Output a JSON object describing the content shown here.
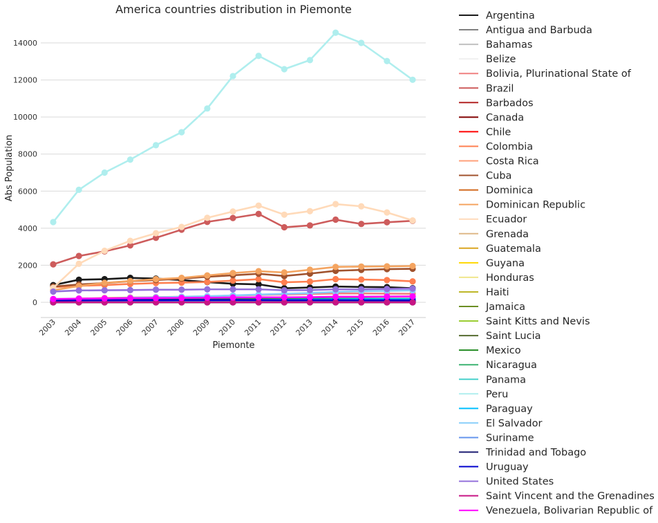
{
  "chart_data": {
    "type": "line",
    "title": "America countries distribution in Piemonte",
    "xlabel": "Piemonte",
    "ylabel": "Abs Population",
    "x": [
      "2003",
      "2004",
      "2005",
      "2006",
      "2007",
      "2008",
      "2009",
      "2010",
      "2011",
      "2012",
      "2013",
      "2014",
      "2015",
      "2016",
      "2017"
    ],
    "y_ticks": [
      0,
      2000,
      4000,
      6000,
      8000,
      10000,
      12000,
      14000
    ],
    "ylim": [
      -800,
      15500
    ],
    "grid": "horizontal",
    "legend_position": "right-outside",
    "series": [
      {
        "name": "Argentina",
        "color": "#1a1a1a",
        "values": [
          930,
          1220,
          1250,
          1320,
          1280,
          1200,
          1090,
          1000,
          970,
          760,
          800,
          850,
          830,
          820,
          760
        ]
      },
      {
        "name": "Antigua and Barbuda",
        "color": "#808080",
        "values": [
          5,
          5,
          5,
          5,
          5,
          5,
          5,
          5,
          5,
          5,
          5,
          5,
          5,
          5,
          5
        ]
      },
      {
        "name": "Bahamas",
        "color": "#c0c0c0",
        "values": [
          3,
          3,
          3,
          3,
          3,
          3,
          3,
          3,
          3,
          3,
          3,
          3,
          3,
          3,
          3
        ]
      },
      {
        "name": "Belize",
        "color": "#f0f0f0",
        "values": [
          2,
          2,
          2,
          2,
          2,
          2,
          2,
          2,
          2,
          2,
          2,
          2,
          2,
          2,
          2
        ]
      },
      {
        "name": "Bolivia, Plurinational State of",
        "color": "#f08080",
        "values": [
          150,
          200,
          230,
          260,
          280,
          300,
          320,
          360,
          400,
          420,
          450,
          480,
          480,
          470,
          460
        ]
      },
      {
        "name": "Brazil",
        "color": "#cd5c5c",
        "values": [
          2050,
          2500,
          2750,
          3070,
          3480,
          3920,
          4340,
          4550,
          4770,
          4050,
          4150,
          4460,
          4230,
          4320,
          4400
        ]
      },
      {
        "name": "Barbados",
        "color": "#b22222",
        "values": [
          2,
          2,
          2,
          2,
          2,
          2,
          2,
          2,
          2,
          2,
          2,
          2,
          2,
          2,
          2
        ]
      },
      {
        "name": "Canada",
        "color": "#800000",
        "values": [
          40,
          45,
          45,
          50,
          50,
          55,
          55,
          55,
          60,
          60,
          60,
          60,
          60,
          60,
          60
        ]
      },
      {
        "name": "Chile",
        "color": "#ff0000",
        "values": [
          80,
          90,
          95,
          100,
          100,
          105,
          105,
          100,
          100,
          95,
          95,
          95,
          90,
          90,
          85
        ]
      },
      {
        "name": "Colombia",
        "color": "#ff7f50",
        "values": [
          820,
          890,
          930,
          990,
          1040,
          1060,
          1100,
          1170,
          1250,
          1080,
          1120,
          1250,
          1230,
          1200,
          1130
        ]
      },
      {
        "name": "Costa Rica",
        "color": "#ffa07a",
        "values": [
          20,
          22,
          24,
          25,
          26,
          27,
          28,
          28,
          28,
          28,
          28,
          28,
          28,
          28,
          28
        ]
      },
      {
        "name": "Cuba",
        "color": "#a0522d",
        "values": [
          850,
          960,
          1040,
          1140,
          1200,
          1280,
          1380,
          1460,
          1540,
          1420,
          1550,
          1700,
          1750,
          1790,
          1810
        ]
      },
      {
        "name": "Dominica",
        "color": "#d2691e",
        "values": [
          10,
          10,
          12,
          12,
          12,
          12,
          12,
          12,
          12,
          12,
          12,
          12,
          12,
          12,
          12
        ]
      },
      {
        "name": "Dominican Republic",
        "color": "#f4a460",
        "values": [
          650,
          880,
          1050,
          1150,
          1250,
          1320,
          1450,
          1580,
          1680,
          1610,
          1760,
          1910,
          1930,
          1940,
          1960
        ]
      },
      {
        "name": "Ecuador",
        "color": "#ffdab9",
        "values": [
          780,
          2080,
          2780,
          3320,
          3730,
          4070,
          4560,
          4900,
          5220,
          4730,
          4920,
          5300,
          5180,
          4850,
          4420
        ]
      },
      {
        "name": "Grenada",
        "color": "#deb887",
        "values": [
          3,
          3,
          3,
          3,
          3,
          3,
          3,
          3,
          3,
          3,
          3,
          3,
          3,
          3,
          3
        ]
      },
      {
        "name": "Guatemala",
        "color": "#daa520",
        "values": [
          15,
          18,
          20,
          22,
          24,
          25,
          26,
          26,
          27,
          27,
          27,
          27,
          27,
          27,
          27
        ]
      },
      {
        "name": "Guyana",
        "color": "#ffd700",
        "values": [
          5,
          5,
          5,
          5,
          5,
          5,
          5,
          5,
          5,
          5,
          5,
          5,
          5,
          5,
          5
        ]
      },
      {
        "name": "Honduras",
        "color": "#f0e68c",
        "values": [
          20,
          25,
          30,
          35,
          40,
          45,
          50,
          55,
          60,
          60,
          60,
          60,
          60,
          60,
          60
        ]
      },
      {
        "name": "Haiti",
        "color": "#bdb728",
        "values": [
          10,
          10,
          12,
          12,
          12,
          12,
          12,
          12,
          12,
          12,
          12,
          12,
          12,
          12,
          12
        ]
      },
      {
        "name": "Jamaica",
        "color": "#6b8e23",
        "values": [
          8,
          8,
          8,
          8,
          8,
          8,
          8,
          8,
          8,
          8,
          8,
          8,
          8,
          8,
          8
        ]
      },
      {
        "name": "Saint Kitts and Nevis",
        "color": "#9acd32",
        "values": [
          1,
          1,
          1,
          1,
          1,
          1,
          1,
          1,
          1,
          1,
          1,
          1,
          1,
          1,
          1
        ]
      },
      {
        "name": "Saint Lucia",
        "color": "#556b2f",
        "values": [
          2,
          2,
          2,
          2,
          2,
          2,
          2,
          2,
          2,
          2,
          2,
          2,
          2,
          2,
          2
        ]
      },
      {
        "name": "Mexico",
        "color": "#228b22",
        "values": [
          130,
          150,
          160,
          170,
          175,
          180,
          185,
          190,
          195,
          190,
          190,
          195,
          195,
          190,
          190
        ]
      },
      {
        "name": "Nicaragua",
        "color": "#3cb371",
        "values": [
          10,
          12,
          14,
          15,
          16,
          17,
          18,
          18,
          18,
          18,
          18,
          18,
          18,
          18,
          18
        ]
      },
      {
        "name": "Panama",
        "color": "#48d1cc",
        "values": [
          15,
          16,
          17,
          18,
          19,
          20,
          20,
          20,
          20,
          20,
          20,
          20,
          20,
          20,
          20
        ]
      },
      {
        "name": "Peru",
        "color": "#afeeee",
        "values": [
          4330,
          6070,
          7000,
          7700,
          8480,
          9180,
          10460,
          12210,
          13300,
          12580,
          13070,
          14550,
          14000,
          13020,
          12010
        ]
      },
      {
        "name": "Paraguay",
        "color": "#00bfff",
        "values": [
          60,
          70,
          80,
          90,
          95,
          100,
          110,
          120,
          130,
          140,
          150,
          160,
          170,
          170,
          170
        ]
      },
      {
        "name": "El Salvador",
        "color": "#87cefa",
        "values": [
          120,
          160,
          200,
          240,
          270,
          300,
          330,
          370,
          420,
          460,
          500,
          560,
          600,
          620,
          640
        ]
      },
      {
        "name": "Suriname",
        "color": "#6495ed",
        "values": [
          2,
          2,
          2,
          2,
          2,
          2,
          2,
          2,
          2,
          2,
          2,
          2,
          2,
          2,
          2
        ]
      },
      {
        "name": "Trinidad and Tobago",
        "color": "#191970",
        "values": [
          5,
          5,
          5,
          5,
          5,
          5,
          5,
          5,
          5,
          5,
          5,
          5,
          5,
          5,
          5
        ]
      },
      {
        "name": "Uruguay",
        "color": "#0000cd",
        "values": [
          100,
          110,
          115,
          120,
          120,
          125,
          125,
          125,
          120,
          115,
          115,
          115,
          110,
          110,
          105
        ]
      },
      {
        "name": "United States",
        "color": "#9370db",
        "values": [
          580,
          640,
          650,
          660,
          680,
          680,
          700,
          700,
          700,
          650,
          660,
          700,
          700,
          720,
          740
        ]
      },
      {
        "name": "Saint Vincent and the Grenadines",
        "color": "#c71585",
        "values": [
          1,
          1,
          1,
          1,
          1,
          1,
          1,
          1,
          1,
          1,
          1,
          1,
          1,
          1,
          1
        ]
      },
      {
        "name": "Venezuela, Bolivarian Republic of",
        "color": "#ff00ff",
        "values": [
          180,
          200,
          210,
          220,
          230,
          240,
          250,
          260,
          270,
          270,
          280,
          300,
          300,
          310,
          320
        ]
      }
    ]
  }
}
